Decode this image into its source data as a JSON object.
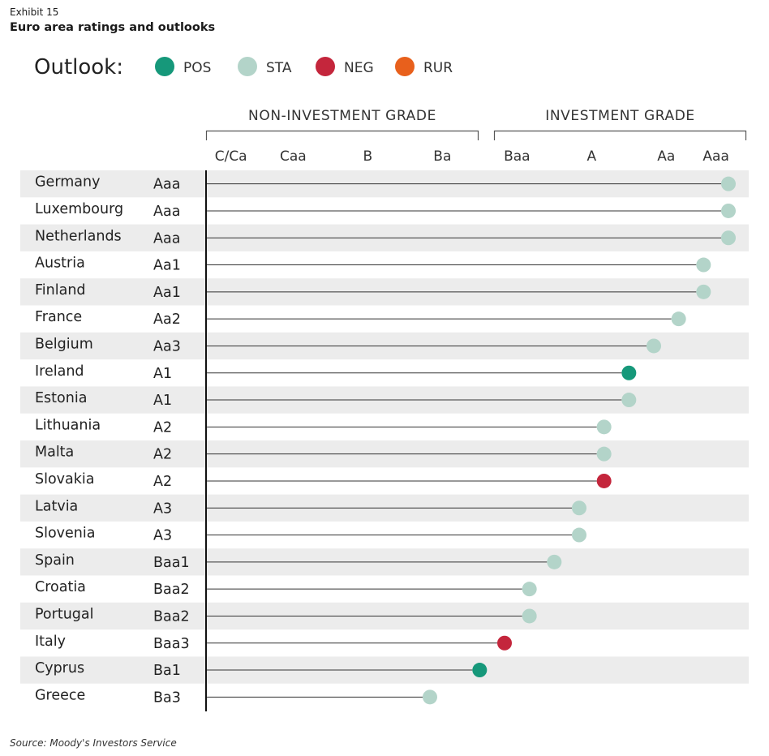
{
  "exhibit_label": "Exhibit 15",
  "title": "Euro area ratings and outlooks",
  "source": "Source: Moody's Investors Service",
  "colors": {
    "POS": "#16987a",
    "STA": "#b3d4c9",
    "NEG": "#c4263c",
    "RUR": "#e8601c",
    "row_band": "#ececec",
    "line": "#333333"
  },
  "chart_data": {
    "type": "lollipop",
    "title": "Euro area ratings and outlooks",
    "legend_title": "Outlook:",
    "legend": [
      {
        "key": "POS",
        "label": "POS"
      },
      {
        "key": "STA",
        "label": "STA"
      },
      {
        "key": "NEG",
        "label": "NEG"
      },
      {
        "key": "RUR",
        "label": "RUR"
      }
    ],
    "groups": [
      {
        "label": "NON-INVESTMENT GRADE",
        "from": 1,
        "to": 11
      },
      {
        "label": "INVESTMENT GRADE",
        "from": 12,
        "to": 21
      }
    ],
    "categories": [
      {
        "label": "C/Ca",
        "value": 1
      },
      {
        "label": "Caa",
        "value": 3.5
      },
      {
        "label": "B",
        "value": 6.5
      },
      {
        "label": "Ba",
        "value": 9.5
      },
      {
        "label": "Baa",
        "value": 12.5
      },
      {
        "label": "A",
        "value": 15.5
      },
      {
        "label": "Aa",
        "value": 18.5
      },
      {
        "label": "Aaa",
        "value": 20.5
      }
    ],
    "xlim": [
      0,
      21
    ],
    "countries": [
      {
        "name": "Germany",
        "rating": "Aaa",
        "value": 21,
        "outlook": "STA"
      },
      {
        "name": "Luxembourg",
        "rating": "Aaa",
        "value": 21,
        "outlook": "STA"
      },
      {
        "name": "Netherlands",
        "rating": "Aaa",
        "value": 21,
        "outlook": "STA"
      },
      {
        "name": "Austria",
        "rating": "Aa1",
        "value": 20,
        "outlook": "STA"
      },
      {
        "name": "Finland",
        "rating": "Aa1",
        "value": 20,
        "outlook": "STA"
      },
      {
        "name": "France",
        "rating": "Aa2",
        "value": 19,
        "outlook": "STA"
      },
      {
        "name": "Belgium",
        "rating": "Aa3",
        "value": 18,
        "outlook": "STA"
      },
      {
        "name": "Ireland",
        "rating": "A1",
        "value": 17,
        "outlook": "POS"
      },
      {
        "name": "Estonia",
        "rating": "A1",
        "value": 17,
        "outlook": "STA"
      },
      {
        "name": "Lithuania",
        "rating": "A2",
        "value": 16,
        "outlook": "STA"
      },
      {
        "name": "Malta",
        "rating": "A2",
        "value": 16,
        "outlook": "STA"
      },
      {
        "name": "Slovakia",
        "rating": "A2",
        "value": 16,
        "outlook": "NEG"
      },
      {
        "name": "Latvia",
        "rating": "A3",
        "value": 15,
        "outlook": "STA"
      },
      {
        "name": "Slovenia",
        "rating": "A3",
        "value": 15,
        "outlook": "STA"
      },
      {
        "name": "Spain",
        "rating": "Baa1",
        "value": 14,
        "outlook": "STA"
      },
      {
        "name": "Croatia",
        "rating": "Baa2",
        "value": 13,
        "outlook": "STA"
      },
      {
        "name": "Portugal",
        "rating": "Baa2",
        "value": 13,
        "outlook": "STA"
      },
      {
        "name": "Italy",
        "rating": "Baa3",
        "value": 12,
        "outlook": "NEG"
      },
      {
        "name": "Cyprus",
        "rating": "Ba1",
        "value": 11,
        "outlook": "POS"
      },
      {
        "name": "Greece",
        "rating": "Ba3",
        "value": 9,
        "outlook": "STA"
      }
    ]
  }
}
